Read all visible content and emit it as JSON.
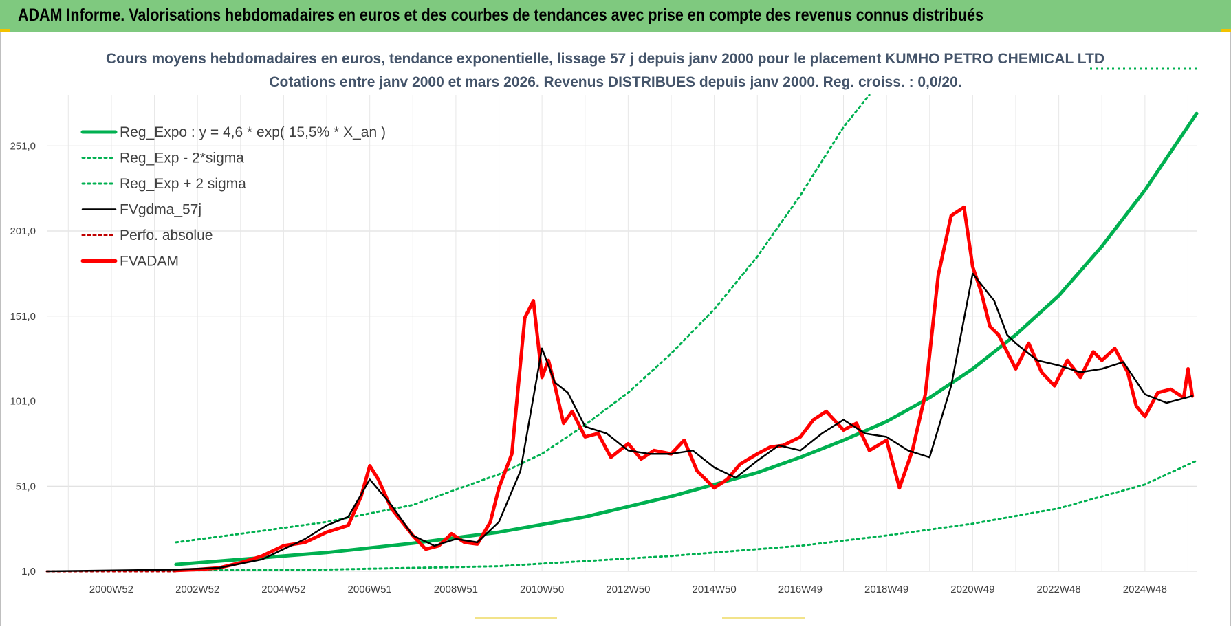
{
  "header": {
    "title": "ADAM Informe. Valorisations hebdomadaires en euros et des courbes de tendances avec prise en compte des revenus connus distribués"
  },
  "colors": {
    "header_bg": "#7fc97f",
    "trend": "#00b050",
    "smooth": "#000000",
    "price": "#ff0000",
    "perf": "#c00000",
    "grid": "#d9d9d9"
  },
  "chart_data": {
    "type": "line",
    "title": "Cours moyens hebdomadaires en euros, tendance exponentielle, lissage 57 j depuis janv 2000 pour le placement KUMHO PETRO CHEMICAL LTD",
    "subtitle": "Cotations entre janv 2000 et mars 2026. Revenus DISTRIBUES depuis janv 2000. Reg. croiss. : 0,0/20.",
    "xlabel": "",
    "ylabel": "",
    "x_range": [
      1999.5,
      2026.2
    ],
    "ylim": [
      1,
      281
    ],
    "y_ticks": [
      "1,0",
      "51,0",
      "101,0",
      "151,0",
      "201,0",
      "251,0"
    ],
    "x_ticks": [
      {
        "label": "2000W52",
        "x": 2001.0
      },
      {
        "label": "2002W52",
        "x": 2003.0
      },
      {
        "label": "2004W52",
        "x": 2005.0
      },
      {
        "label": "2006W51",
        "x": 2007.0
      },
      {
        "label": "2008W51",
        "x": 2009.0
      },
      {
        "label": "2010W50",
        "x": 2011.0
      },
      {
        "label": "2012W50",
        "x": 2013.0
      },
      {
        "label": "2014W50",
        "x": 2015.0
      },
      {
        "label": "2016W49",
        "x": 2017.0
      },
      {
        "label": "2018W49",
        "x": 2019.0
      },
      {
        "label": "2020W49",
        "x": 2021.0
      },
      {
        "label": "2022W48",
        "x": 2023.0
      },
      {
        "label": "2024W48",
        "x": 2025.0
      }
    ],
    "grid": true,
    "legend_position": "top-left",
    "series": [
      {
        "name": "Reg_Expo : y = 4,6 * exp( 15,5% *  X_an )",
        "style": "solid-thick",
        "color": "#00b050",
        "x": [
          2002.5,
          2006.0,
          2008.0,
          2010.0,
          2012.0,
          2014.0,
          2016.0,
          2017.0,
          2018.0,
          2019.0,
          2020.0,
          2021.0,
          2022.0,
          2023.0,
          2024.0,
          2025.0,
          2026.2
        ],
        "y": [
          5.0,
          12.0,
          17.5,
          24.0,
          33.0,
          45.0,
          59.0,
          68.0,
          78.0,
          89.0,
          103.0,
          120.0,
          140.0,
          163.0,
          192.0,
          225.0,
          270.0
        ]
      },
      {
        "name": "Reg_Exp - 2*sigma",
        "style": "dotted",
        "color": "#00b050",
        "x": [
          2002.5,
          2006.0,
          2010.0,
          2014.0,
          2017.0,
          2019.0,
          2021.0,
          2023.0,
          2025.0,
          2026.2
        ],
        "y": [
          1.5,
          2.0,
          4.0,
          10.0,
          16.0,
          22.0,
          29.0,
          38.0,
          52.0,
          66.0
        ]
      },
      {
        "name": "Reg_Exp + 2 sigma",
        "style": "dotted",
        "color": "#00b050",
        "x": [
          2002.5,
          2004.0,
          2006.0,
          2008.0,
          2010.0,
          2011.0,
          2012.0,
          2013.0,
          2014.0,
          2015.0,
          2016.0,
          2017.0,
          2018.0,
          2018.6
        ],
        "y": [
          18.0,
          23.0,
          30.0,
          40.0,
          58.0,
          70.0,
          87.0,
          106.0,
          129.0,
          155.0,
          186.0,
          222.0,
          262.0,
          281.0
        ]
      },
      {
        "name": "FVgdma_57j",
        "style": "solid",
        "color": "#000000",
        "x": [
          1999.5,
          2002.5,
          2003.5,
          2004.5,
          2005.0,
          2005.5,
          2006.0,
          2006.5,
          2007.0,
          2007.5,
          2008.0,
          2008.5,
          2009.0,
          2009.5,
          2010.0,
          2010.5,
          2011.0,
          2011.3,
          2011.6,
          2012.0,
          2012.5,
          2013.0,
          2013.5,
          2014.0,
          2014.5,
          2015.0,
          2015.5,
          2016.0,
          2016.5,
          2017.0,
          2017.5,
          2018.0,
          2018.5,
          2019.0,
          2019.5,
          2020.0,
          2020.5,
          2021.0,
          2021.5,
          2021.8,
          2022.0,
          2022.5,
          2023.0,
          2023.5,
          2024.0,
          2024.5,
          2025.0,
          2025.5,
          2026.1
        ],
        "y": [
          1,
          2,
          3,
          8,
          14,
          20,
          28,
          33,
          55,
          40,
          22,
          16,
          20,
          18,
          30,
          60,
          132,
          112,
          106,
          86,
          82,
          72,
          70,
          70,
          72,
          62,
          56,
          66,
          75,
          72,
          82,
          90,
          82,
          80,
          72,
          68,
          110,
          176,
          160,
          140,
          135,
          125,
          122,
          118,
          120,
          124,
          105,
          100,
          104
        ]
      },
      {
        "name": "Perfo. absolue",
        "style": "dotted",
        "color": "#c00000",
        "x": [
          1999.5,
          2002.5
        ],
        "y": [
          1,
          1
        ]
      },
      {
        "name": "FVADAM",
        "style": "solid-thick",
        "color": "#ff0000",
        "x": [
          2002.5,
          2003.0,
          2003.5,
          2004.0,
          2004.5,
          2005.0,
          2005.5,
          2006.0,
          2006.5,
          2006.8,
          2007.0,
          2007.2,
          2007.5,
          2008.0,
          2008.3,
          2008.6,
          2008.9,
          2009.2,
          2009.5,
          2009.8,
          2010.0,
          2010.3,
          2010.6,
          2010.8,
          2011.0,
          2011.15,
          2011.3,
          2011.5,
          2011.7,
          2012.0,
          2012.3,
          2012.6,
          2013.0,
          2013.3,
          2013.6,
          2014.0,
          2014.3,
          2014.6,
          2015.0,
          2015.3,
          2015.6,
          2016.0,
          2016.3,
          2016.6,
          2017.0,
          2017.3,
          2017.6,
          2018.0,
          2018.3,
          2018.6,
          2019.0,
          2019.3,
          2019.6,
          2019.9,
          2020.2,
          2020.5,
          2020.8,
          2021.0,
          2021.2,
          2021.4,
          2021.6,
          2021.8,
          2022.0,
          2022.3,
          2022.6,
          2022.9,
          2023.2,
          2023.5,
          2023.8,
          2024.0,
          2024.3,
          2024.6,
          2024.8,
          2025.0,
          2025.3,
          2025.6,
          2025.9,
          2026.0,
          2026.1
        ],
        "y": [
          1.5,
          2,
          3,
          6,
          10,
          16,
          18,
          24,
          28,
          45,
          63,
          55,
          38,
          22,
          14,
          16,
          23,
          18,
          17,
          30,
          50,
          70,
          150,
          160,
          115,
          125,
          110,
          88,
          95,
          80,
          82,
          68,
          76,
          67,
          72,
          70,
          78,
          60,
          50,
          55,
          64,
          70,
          74,
          75,
          80,
          90,
          95,
          84,
          88,
          72,
          78,
          50,
          72,
          105,
          175,
          210,
          215,
          180,
          165,
          145,
          140,
          130,
          120,
          135,
          118,
          110,
          125,
          115,
          130,
          125,
          132,
          118,
          98,
          92,
          106,
          108,
          103,
          120,
          104
        ]
      }
    ]
  }
}
